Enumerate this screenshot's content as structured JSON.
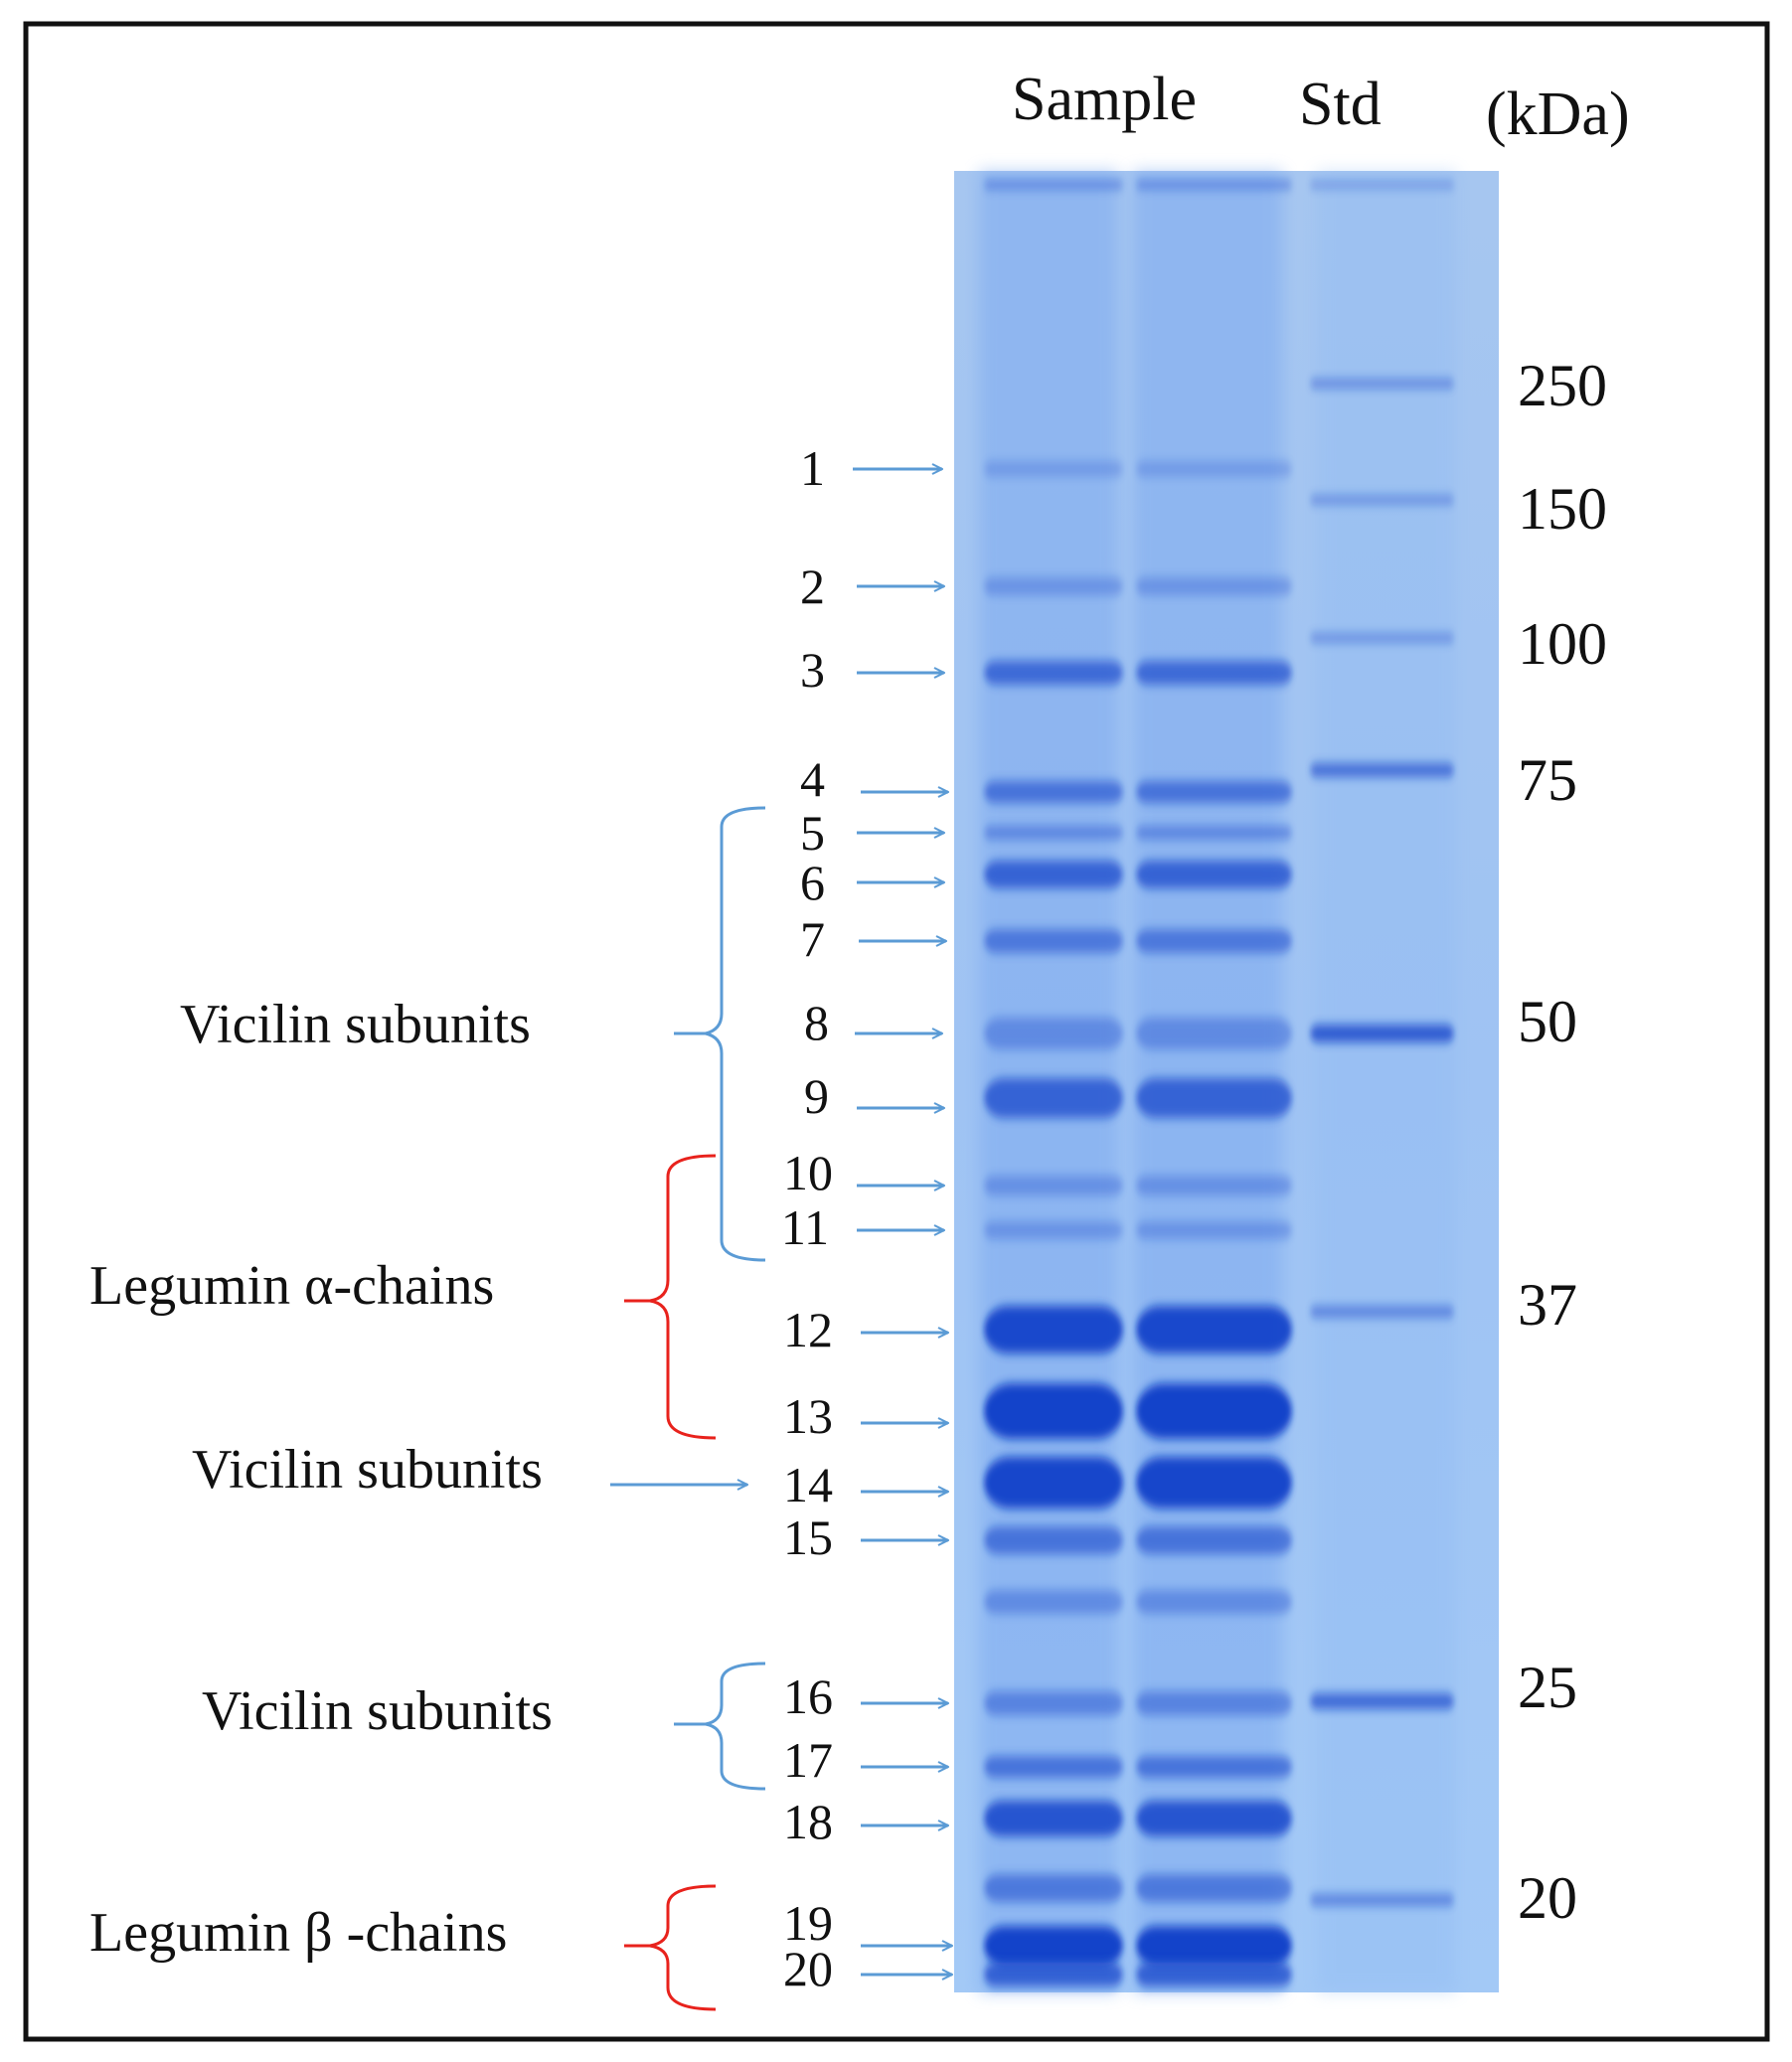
{
  "header": {
    "sample": "Sample",
    "std": "Std",
    "unit": "(kDa)"
  },
  "markers": [
    "250",
    "150",
    "100",
    "75",
    "50",
    "37",
    "25",
    "20"
  ],
  "bands": [
    "1",
    "2",
    "3",
    "4",
    "5",
    "6",
    "7",
    "8",
    "9",
    "10",
    "11",
    "12",
    "13",
    "14",
    "15",
    "16",
    "17",
    "18",
    "19",
    "20"
  ],
  "groups": [
    {
      "label": "Vicilin subunits",
      "color": "#5b9bd5"
    },
    {
      "label": "Legumin α-chains",
      "color": "#e8221c"
    },
    {
      "label": "Vicilin subunits",
      "color": "#5b9bd5"
    },
    {
      "label": "Vicilin subunits",
      "color": "#5b9bd5"
    },
    {
      "label": "Legumin β -chains",
      "color": "#e8221c"
    }
  ],
  "colors": {
    "arrow": "#5b9bd5",
    "gel": "#a9cdf6",
    "band": "#0e3cc8",
    "border": "#111111"
  }
}
